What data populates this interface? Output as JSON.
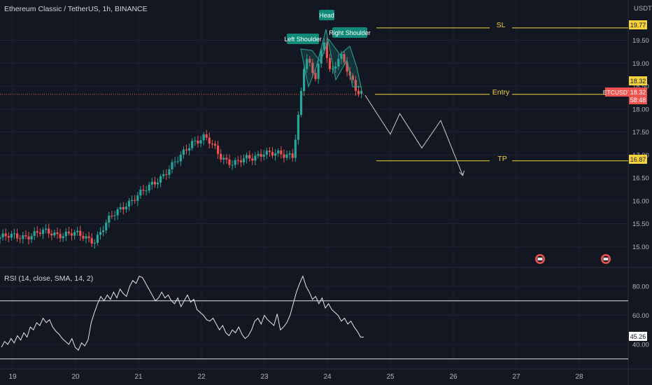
{
  "header": {
    "symbol_title": "Ethereum Classic / TetherUS, 1h, BINANCE"
  },
  "price_axis": {
    "unit_label": "USDT",
    "ticks": [
      "19.50",
      "19.00",
      "18.50",
      "18.00",
      "17.50",
      "17.00",
      "16.50",
      "16.00",
      "15.50",
      "15.00"
    ]
  },
  "rsi_panel": {
    "title": "RSI (14, close, SMA, 14, 2)",
    "ticks": [
      "80.00",
      "60.00",
      "40.00"
    ],
    "current_value": "45.26"
  },
  "time_axis": {
    "ticks": [
      "19",
      "20",
      "21",
      "22",
      "23",
      "24",
      "25",
      "26",
      "27",
      "28"
    ]
  },
  "annotations": {
    "left_shoulder": "Left Shoulder",
    "head": "Head",
    "right_shoulder": "Right Shoulder",
    "sl_label": "SL",
    "entry_label": "Entry",
    "tp_label": "TP",
    "sl_price": "19.77",
    "entry_price": "18.32",
    "tp_price": "16.87",
    "ticker_badge": "ETCUSDT",
    "last_price": "18.32",
    "countdown": "58:48"
  },
  "colors": {
    "background": "#131722",
    "up": "#26a69a",
    "down": "#ef5350",
    "level_line": "#f5d13b",
    "grid": "#1e2230",
    "pattern_fill": "#26a69a",
    "price_line": "#ef5350"
  },
  "chart_data": [
    {
      "type": "candlestick",
      "title": "Ethereum Classic / TetherUS, 1h, BINANCE",
      "ylabel": "USDT",
      "ylim": [
        14.7,
        20.0
      ],
      "x_ticks": [
        "19",
        "20",
        "21",
        "22",
        "23",
        "24",
        "25",
        "26",
        "27",
        "28"
      ],
      "approx_close_path": [
        [
          18.95,
          15.2
        ],
        [
          19.5,
          15.3
        ],
        [
          19.9,
          15.28
        ],
        [
          20.3,
          15.15
        ],
        [
          20.55,
          15.6
        ],
        [
          20.8,
          15.95
        ],
        [
          21.1,
          16.2
        ],
        [
          21.4,
          16.6
        ],
        [
          21.65,
          16.9
        ],
        [
          21.85,
          17.3
        ],
        [
          22.05,
          17.4
        ],
        [
          22.3,
          16.95
        ],
        [
          22.5,
          16.85
        ],
        [
          22.8,
          16.9
        ],
        [
          23.0,
          17.1
        ],
        [
          23.3,
          16.95
        ],
        [
          23.45,
          17.0
        ],
        [
          23.55,
          18.0
        ],
        [
          23.65,
          19.2
        ],
        [
          23.8,
          18.6
        ],
        [
          23.95,
          19.5
        ],
        [
          24.05,
          18.8
        ],
        [
          24.2,
          19.2
        ],
        [
          24.35,
          18.7
        ],
        [
          24.45,
          18.4
        ]
      ],
      "levels": [
        {
          "label": "SL",
          "price": 19.77
        },
        {
          "label": "Entry",
          "price": 18.32
        },
        {
          "label": "TP",
          "price": 16.87
        }
      ],
      "pattern": [
        "Left Shoulder",
        "Head",
        "Right Shoulder"
      ],
      "projection_path": [
        [
          24.6,
          18.3
        ],
        [
          25.0,
          17.45
        ],
        [
          25.15,
          17.9
        ],
        [
          25.5,
          17.15
        ],
        [
          25.8,
          17.75
        ],
        [
          26.15,
          16.55
        ]
      ]
    },
    {
      "type": "line",
      "title": "RSI (14, close, SMA, 14, 2)",
      "ylim": [
        30,
        90
      ],
      "reference_lines": [
        70,
        30
      ],
      "last_value": 45.26,
      "values": [
        38,
        42,
        40,
        44,
        41,
        46,
        43,
        48,
        45,
        52,
        50,
        55,
        53,
        58,
        55,
        57,
        52,
        49,
        47,
        44,
        42,
        40,
        44,
        38,
        36,
        41,
        39,
        43,
        55,
        62,
        68,
        73,
        70,
        74,
        71,
        76,
        72,
        78,
        75,
        73,
        80,
        84,
        82,
        87,
        86,
        82,
        78,
        74,
        70,
        72,
        76,
        72,
        74,
        70,
        68,
        72,
        66,
        70,
        74,
        69,
        71,
        64,
        62,
        60,
        57,
        56,
        58,
        54,
        50,
        53,
        48,
        46,
        50,
        48,
        52,
        47,
        44,
        46,
        50,
        56,
        58,
        54,
        60,
        57,
        55,
        53,
        61,
        50,
        52,
        55,
        60,
        68,
        76,
        82,
        87,
        80,
        76,
        71,
        73,
        68,
        72,
        65,
        68,
        64,
        62,
        60,
        56,
        58,
        54,
        56,
        52,
        49,
        45,
        45
      ]
    }
  ]
}
